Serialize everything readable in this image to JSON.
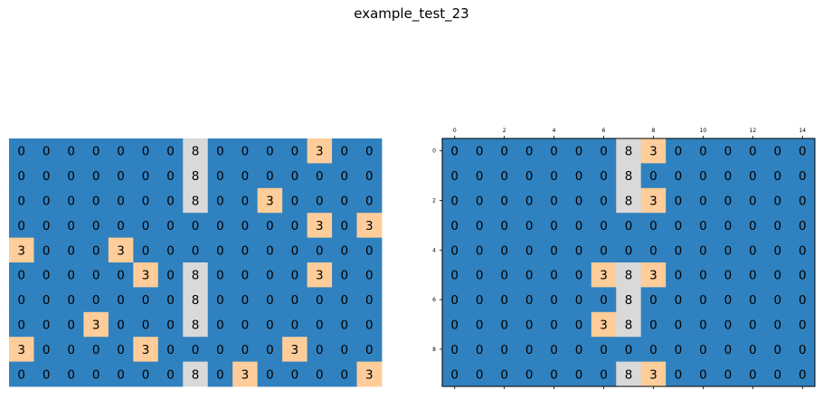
{
  "title": "example_test_23",
  "colors": {
    "0": "#3081bf",
    "3": "#fecd99",
    "8": "#d9d9d9",
    "spine": "#000000"
  },
  "chart_data": [
    {
      "type": "heatmap",
      "name": "input-grid",
      "axes_visible": false,
      "grid": [
        [
          0,
          0,
          0,
          0,
          0,
          0,
          0,
          8,
          0,
          0,
          0,
          0,
          3,
          0,
          0
        ],
        [
          0,
          0,
          0,
          0,
          0,
          0,
          0,
          8,
          0,
          0,
          0,
          0,
          0,
          0,
          0
        ],
        [
          0,
          0,
          0,
          0,
          0,
          0,
          0,
          8,
          0,
          0,
          3,
          0,
          0,
          0,
          0
        ],
        [
          0,
          0,
          0,
          0,
          0,
          0,
          0,
          0,
          0,
          0,
          0,
          0,
          3,
          0,
          3
        ],
        [
          3,
          0,
          0,
          0,
          3,
          0,
          0,
          0,
          0,
          0,
          0,
          0,
          0,
          0,
          0
        ],
        [
          0,
          0,
          0,
          0,
          0,
          3,
          0,
          8,
          0,
          0,
          0,
          0,
          3,
          0,
          0
        ],
        [
          0,
          0,
          0,
          0,
          0,
          0,
          0,
          8,
          0,
          0,
          0,
          0,
          0,
          0,
          0
        ],
        [
          0,
          0,
          0,
          3,
          0,
          0,
          0,
          8,
          0,
          0,
          0,
          0,
          0,
          0,
          0
        ],
        [
          3,
          0,
          0,
          0,
          0,
          3,
          0,
          0,
          0,
          0,
          0,
          3,
          0,
          0,
          0
        ],
        [
          0,
          0,
          0,
          0,
          0,
          0,
          0,
          8,
          0,
          3,
          0,
          0,
          0,
          0,
          3
        ]
      ]
    },
    {
      "type": "heatmap",
      "name": "output-grid",
      "axes_visible": true,
      "x_ticks": [
        0,
        2,
        4,
        6,
        8,
        10,
        12,
        14
      ],
      "y_ticks": [
        0,
        2,
        4,
        6,
        8
      ],
      "grid": [
        [
          0,
          0,
          0,
          0,
          0,
          0,
          0,
          8,
          3,
          0,
          0,
          0,
          0,
          0,
          0
        ],
        [
          0,
          0,
          0,
          0,
          0,
          0,
          0,
          8,
          0,
          0,
          0,
          0,
          0,
          0,
          0
        ],
        [
          0,
          0,
          0,
          0,
          0,
          0,
          0,
          8,
          3,
          0,
          0,
          0,
          0,
          0,
          0
        ],
        [
          0,
          0,
          0,
          0,
          0,
          0,
          0,
          0,
          0,
          0,
          0,
          0,
          0,
          0,
          0
        ],
        [
          0,
          0,
          0,
          0,
          0,
          0,
          0,
          0,
          0,
          0,
          0,
          0,
          0,
          0,
          0
        ],
        [
          0,
          0,
          0,
          0,
          0,
          0,
          3,
          8,
          3,
          0,
          0,
          0,
          0,
          0,
          0
        ],
        [
          0,
          0,
          0,
          0,
          0,
          0,
          0,
          8,
          0,
          0,
          0,
          0,
          0,
          0,
          0
        ],
        [
          0,
          0,
          0,
          0,
          0,
          0,
          3,
          8,
          0,
          0,
          0,
          0,
          0,
          0,
          0
        ],
        [
          0,
          0,
          0,
          0,
          0,
          0,
          0,
          0,
          0,
          0,
          0,
          0,
          0,
          0,
          0
        ],
        [
          0,
          0,
          0,
          0,
          0,
          0,
          0,
          8,
          3,
          0,
          0,
          0,
          0,
          0,
          0
        ]
      ]
    }
  ]
}
